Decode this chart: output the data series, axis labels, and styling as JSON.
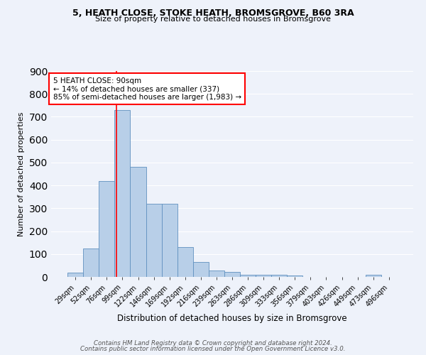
{
  "title_line1": "5, HEATH CLOSE, STOKE HEATH, BROMSGROVE, B60 3RA",
  "title_line2": "Size of property relative to detached houses in Bromsgrove",
  "xlabel": "Distribution of detached houses by size in Bromsgrove",
  "ylabel": "Number of detached properties",
  "categories": [
    "29sqm",
    "52sqm",
    "76sqm",
    "99sqm",
    "122sqm",
    "146sqm",
    "169sqm",
    "192sqm",
    "216sqm",
    "239sqm",
    "263sqm",
    "286sqm",
    "309sqm",
    "333sqm",
    "356sqm",
    "379sqm",
    "403sqm",
    "426sqm",
    "449sqm",
    "473sqm",
    "496sqm"
  ],
  "values": [
    20,
    125,
    420,
    730,
    480,
    320,
    320,
    130,
    65,
    27,
    22,
    10,
    8,
    8,
    5,
    0,
    0,
    0,
    0,
    8,
    0
  ],
  "bar_color": "#b8cfe8",
  "bar_edge_color": "#6090c0",
  "annotation_text": "5 HEATH CLOSE: 90sqm\n← 14% of detached houses are smaller (337)\n85% of semi-detached houses are larger (1,983) →",
  "ylim": [
    0,
    900
  ],
  "yticks": [
    0,
    100,
    200,
    300,
    400,
    500,
    600,
    700,
    800,
    900
  ],
  "bg_color": "#eef2fa",
  "grid_color": "#ffffff",
  "footer_line1": "Contains HM Land Registry data © Crown copyright and database right 2024.",
  "footer_line2": "Contains public sector information licensed under the Open Government Licence v3.0."
}
